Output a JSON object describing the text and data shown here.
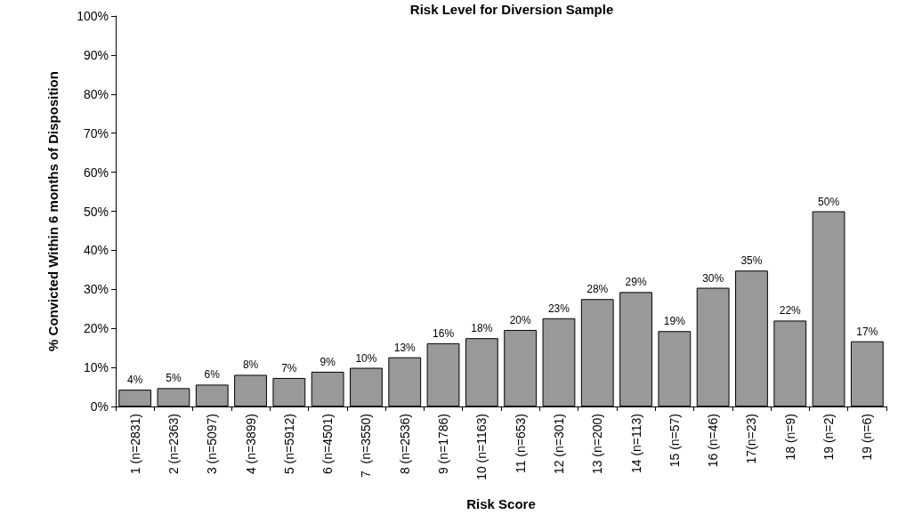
{
  "chart_data": {
    "type": "bar",
    "title": "Risk Level for Diversion Sample",
    "xlabel": "Risk Score",
    "ylabel": "% Convicted Within 6 months of Disposition",
    "categories": [
      "1 (n=2831)",
      "2 (n=2363)",
      "3 (n=5097)",
      "4 (n=3899)",
      "5 (n=5912)",
      "6 (n=4501)",
      "7  (n=3550)",
      "8 (n=2536)",
      "9 (n=1786)",
      "10 (n=1163)",
      "11 (n=653)",
      "12 (n=301)",
      "13 (n=200)",
      "14 (n=113)",
      "15 (n=57)",
      "16 (n=46)",
      "17(n=23)",
      "18 (n=9)",
      "19 (n=2)",
      "19 (n=6)"
    ],
    "values": [
      4.3,
      4.7,
      5.6,
      8.1,
      7.3,
      8.9,
      9.9,
      12.6,
      16.2,
      17.5,
      19.6,
      22.6,
      27.5,
      29.3,
      19.3,
      30.4,
      34.8,
      22.0,
      50.0,
      16.7
    ],
    "value_labels": [
      "4%",
      "5%",
      "6%",
      "8%",
      "7%",
      "9%",
      "10%",
      "13%",
      "16%",
      "18%",
      "20%",
      "23%",
      "28%",
      "29%",
      "19%",
      "30%",
      "35%",
      "22%",
      "50%",
      "17%"
    ],
    "color": "#999999",
    "ylim": [
      0,
      100
    ],
    "yticks": [
      {
        "value": 0,
        "label": "0%"
      },
      {
        "value": 10,
        "label": "10%"
      },
      {
        "value": 20,
        "label": "20%"
      },
      {
        "value": 30,
        "label": "30%"
      },
      {
        "value": 40,
        "label": "40%"
      },
      {
        "value": 50,
        "label": "50%"
      },
      {
        "value": 60,
        "label": "60%"
      },
      {
        "value": 70,
        "label": "70%"
      },
      {
        "value": 80,
        "label": "80%"
      },
      {
        "value": 90,
        "label": "90%"
      },
      {
        "value": 100,
        "label": "100%"
      }
    ],
    "grid": false
  }
}
